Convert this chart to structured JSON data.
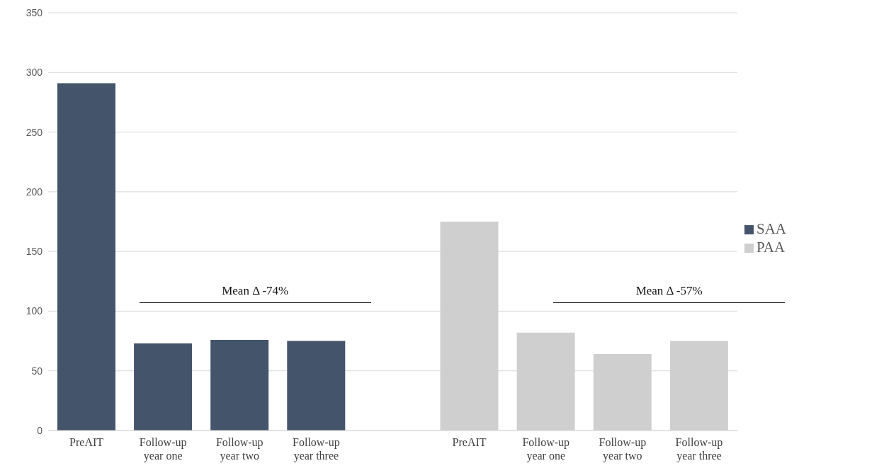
{
  "chart_data": {
    "type": "bar",
    "categories": [
      "PreAIT",
      "Follow-up year one",
      "Follow-up year two",
      "Follow-up year three",
      null,
      "PreAIT",
      "Follow-up year one",
      "Follow-up year two",
      "Follow-up year three"
    ],
    "series": [
      {
        "name": "SAA",
        "color": "#44546a",
        "values": [
          291,
          73,
          76,
          75,
          null,
          null,
          null,
          null,
          null
        ]
      },
      {
        "name": "PAA",
        "color": "#d0cfd0",
        "values": [
          null,
          null,
          null,
          null,
          null,
          175,
          82,
          64,
          75
        ]
      }
    ],
    "ylim": [
      0,
      350
    ],
    "yticks": [
      0,
      50,
      100,
      150,
      200,
      250,
      300,
      350
    ],
    "grid": "y",
    "legend": "right",
    "annotations": [
      "Mean Δ -74%",
      "Mean Δ -57%"
    ]
  }
}
